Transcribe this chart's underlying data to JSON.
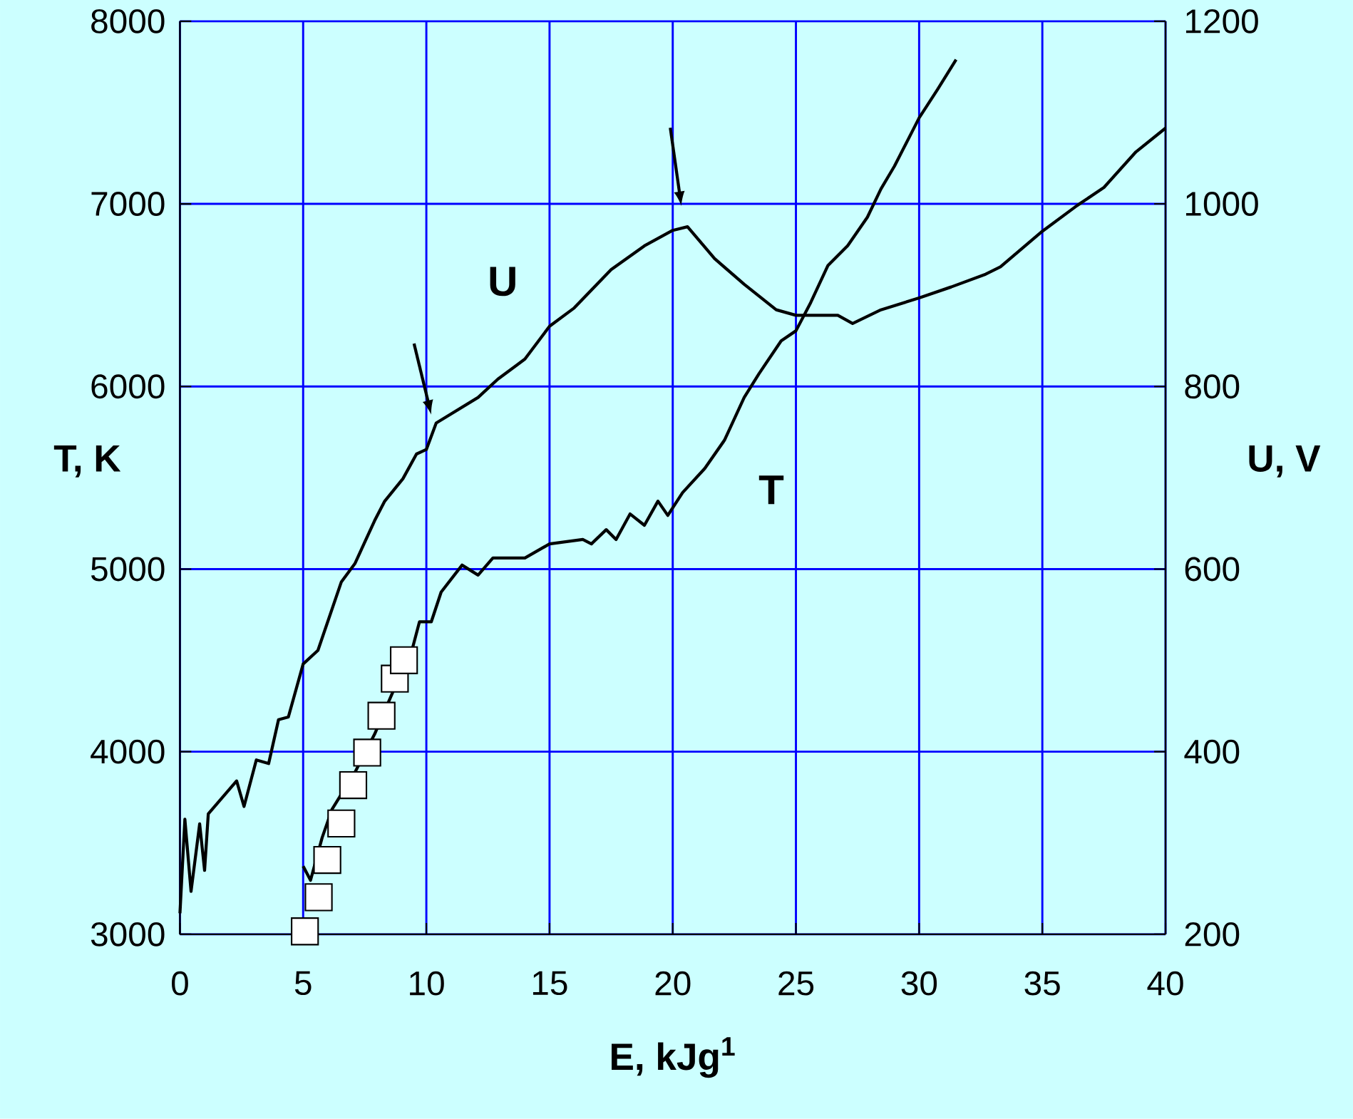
{
  "chart_data": {
    "type": "line",
    "xlabel": "E, kJg$^{1}$",
    "ylabel": "T, K",
    "y2label": "U, V",
    "xlim": [
      0,
      40
    ],
    "xticks": [
      0,
      5,
      10,
      15,
      20,
      25,
      30,
      35,
      40
    ],
    "ylim": [
      3000,
      8000
    ],
    "yticks": [
      3000,
      4000,
      5000,
      6000,
      7000,
      8000
    ],
    "y2lim": [
      200,
      1200
    ],
    "y2ticks": [
      200,
      400,
      600,
      800,
      1000,
      1200
    ],
    "grid": true,
    "series": [
      {
        "name": "U",
        "axis": "y2",
        "color": "#000000",
        "x": [
          0.0,
          0.2,
          0.45,
          0.8,
          1.0,
          1.15,
          2.3,
          2.6,
          3.1,
          3.6,
          4.0,
          4.4,
          5.0,
          5.6,
          6.55,
          7.1,
          7.9,
          8.3,
          9.05,
          9.6,
          10.0,
          10.4,
          12.1,
          12.9,
          14.0,
          15.0,
          16.0,
          17.5,
          18.85,
          20.0,
          20.6,
          21.7,
          22.9,
          24.2,
          25.0,
          26.7,
          27.3,
          28.45,
          30.0,
          31.3,
          32.7,
          33.3,
          35.0,
          36.4,
          37.5,
          38.8,
          40.0
        ],
        "values": [
          223,
          326,
          247,
          321,
          270,
          332,
          368,
          340,
          391,
          387,
          435,
          438,
          496,
          511,
          586,
          606,
          653,
          674,
          699,
          726,
          731,
          760,
          788,
          808,
          830,
          866,
          886,
          928,
          954,
          971,
          975,
          940,
          912,
          884,
          878,
          878,
          869,
          884,
          897,
          909,
          923,
          931,
          970,
          998,
          1018,
          1057,
          1083
        ]
      },
      {
        "name": "T",
        "color": "#000000",
        "x": [
          5.0,
          5.3,
          5.77,
          6.17,
          7.13,
          7.9,
          8.65,
          9.43,
          9.72,
          10.2,
          10.6,
          11.45,
          12.1,
          12.7,
          14.0,
          15.0,
          16.35,
          16.7,
          17.3,
          17.7,
          18.27,
          18.85,
          19.4,
          19.8,
          20.4,
          21.3,
          22.1,
          22.9,
          23.5,
          24.4,
          25.0,
          25.6,
          26.3,
          27.1,
          27.9,
          28.45,
          29.0,
          30.0,
          30.75,
          31.5
        ],
        "values": [
          3373,
          3296,
          3529,
          3684,
          3894,
          4096,
          4330,
          4563,
          4711,
          4711,
          4874,
          5022,
          4967,
          5061,
          5061,
          5138,
          5162,
          5138,
          5216,
          5162,
          5302,
          5240,
          5372,
          5294,
          5419,
          5551,
          5706,
          5940,
          6070,
          6250,
          6305,
          6460,
          6663,
          6771,
          6927,
          7082,
          7207,
          7471,
          7627,
          7790
        ]
      },
      {
        "type": "scatter",
        "marker": "square",
        "color": "#ffffff",
        "x": [
          5.07,
          5.63,
          5.98,
          6.55,
          7.03,
          7.6,
          8.18,
          8.72,
          9.09
        ],
        "values": [
          3016,
          3203,
          3407,
          3607,
          3817,
          3995,
          4197,
          4400,
          4501
        ]
      }
    ]
  }
}
